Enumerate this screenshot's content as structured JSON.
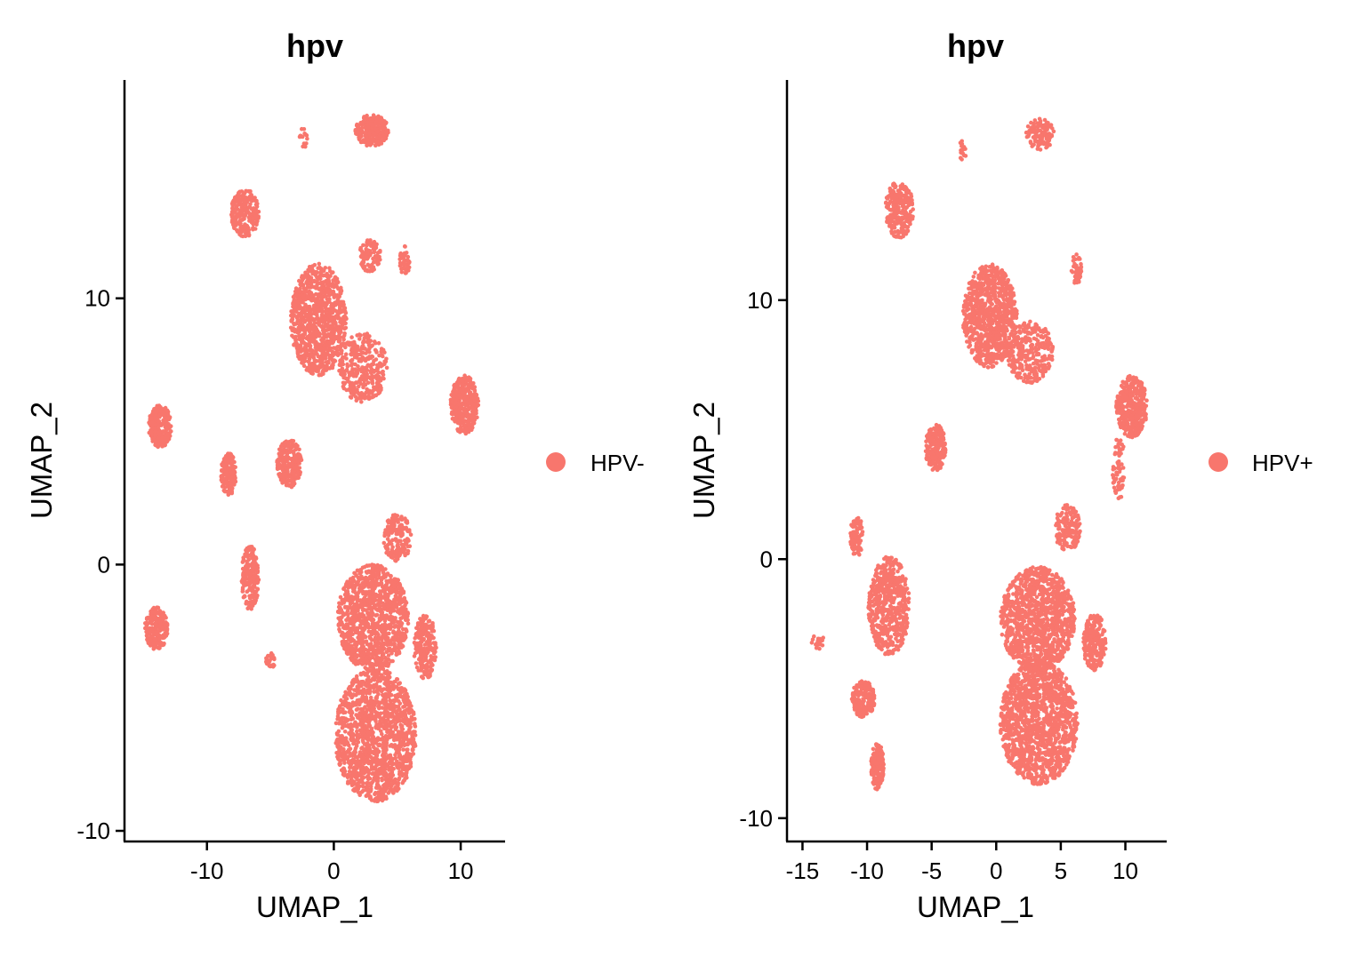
{
  "chart_data": [
    {
      "type": "scatter",
      "title": "hpv",
      "xlabel": "UMAP_1",
      "ylabel": "UMAP_2",
      "xlim": [
        -16.5,
        13.5
      ],
      "ylim": [
        -10.4,
        18.2
      ],
      "xticks": [
        -10,
        0,
        10
      ],
      "yticks": [
        -10,
        0,
        10
      ],
      "xtick_labels": [
        "-10",
        "0",
        "10"
      ],
      "ytick_labels": [
        "-10",
        "0",
        "10"
      ],
      "grid": false,
      "legend_position": "right",
      "series": [
        {
          "name": "HPV-",
          "color": "#F8766D",
          "clusters": [
            {
              "cx": 3.3,
              "cy": -6.4,
              "sx": 3.2,
              "sy": 2.5,
              "n": 1400
            },
            {
              "cx": 3.1,
              "cy": -2.0,
              "sx": 2.8,
              "sy": 2.0,
              "n": 1100
            },
            {
              "cx": 7.2,
              "cy": -3.1,
              "sx": 0.9,
              "sy": 1.2,
              "n": 220
            },
            {
              "cx": 5.0,
              "cy": 1.0,
              "sx": 1.1,
              "sy": 0.9,
              "n": 160
            },
            {
              "cx": -1.2,
              "cy": 9.2,
              "sx": 2.2,
              "sy": 2.1,
              "n": 900
            },
            {
              "cx": 2.3,
              "cy": 7.4,
              "sx": 1.9,
              "sy": 1.3,
              "n": 330
            },
            {
              "cx": 2.8,
              "cy": 11.6,
              "sx": 0.9,
              "sy": 0.6,
              "n": 90
            },
            {
              "cx": 10.3,
              "cy": 6.0,
              "sx": 1.1,
              "sy": 1.1,
              "n": 360
            },
            {
              "cx": 5.6,
              "cy": 11.4,
              "sx": 0.4,
              "sy": 0.6,
              "n": 45
            },
            {
              "cx": 3.0,
              "cy": 16.3,
              "sx": 1.3,
              "sy": 0.6,
              "n": 260
            },
            {
              "cx": -2.4,
              "cy": 16.0,
              "sx": 0.3,
              "sy": 0.4,
              "n": 18
            },
            {
              "cx": -7.0,
              "cy": 13.2,
              "sx": 1.1,
              "sy": 0.9,
              "n": 220
            },
            {
              "cx": -13.7,
              "cy": 5.2,
              "sx": 0.9,
              "sy": 0.8,
              "n": 230
            },
            {
              "cx": -8.3,
              "cy": 3.4,
              "sx": 0.6,
              "sy": 0.8,
              "n": 160
            },
            {
              "cx": -3.5,
              "cy": 3.8,
              "sx": 1.0,
              "sy": 0.9,
              "n": 230
            },
            {
              "cx": -6.6,
              "cy": -0.5,
              "sx": 0.7,
              "sy": 1.2,
              "n": 190
            },
            {
              "cx": -14.0,
              "cy": -2.4,
              "sx": 0.9,
              "sy": 0.8,
              "n": 220
            },
            {
              "cx": -5.0,
              "cy": -3.6,
              "sx": 0.4,
              "sy": 0.3,
              "n": 25
            }
          ]
        }
      ]
    },
    {
      "type": "scatter",
      "title": "hpv",
      "xlabel": "UMAP_1",
      "ylabel": "UMAP_2",
      "xlim": [
        -16.2,
        13.2
      ],
      "ylim": [
        -10.9,
        18.5
      ],
      "xticks": [
        -15,
        -10,
        -5,
        0,
        5,
        10
      ],
      "yticks": [
        -10,
        0,
        10
      ],
      "xtick_labels": [
        "-15",
        "-10",
        "-5",
        "0",
        "5",
        "10"
      ],
      "ytick_labels": [
        "-10",
        "0",
        "10"
      ],
      "grid": false,
      "legend_position": "right",
      "series": [
        {
          "name": "HPV+",
          "color": "#F8766D",
          "clusters": [
            {
              "cx": 3.3,
              "cy": -6.3,
              "sx": 3.0,
              "sy": 2.4,
              "n": 1400
            },
            {
              "cx": 3.2,
              "cy": -2.3,
              "sx": 2.9,
              "sy": 2.0,
              "n": 1100
            },
            {
              "cx": 7.6,
              "cy": -3.2,
              "sx": 0.9,
              "sy": 1.1,
              "n": 220
            },
            {
              "cx": 5.5,
              "cy": 1.2,
              "sx": 1.0,
              "sy": 0.9,
              "n": 150
            },
            {
              "cx": -0.5,
              "cy": 9.4,
              "sx": 2.1,
              "sy": 2.0,
              "n": 850
            },
            {
              "cx": 2.6,
              "cy": 8.0,
              "sx": 1.8,
              "sy": 1.2,
              "n": 300
            },
            {
              "cx": 6.2,
              "cy": 11.2,
              "sx": 0.4,
              "sy": 0.6,
              "n": 50
            },
            {
              "cx": 10.5,
              "cy": 5.9,
              "sx": 1.2,
              "sy": 1.2,
              "n": 380
            },
            {
              "cx": 9.5,
              "cy": 3.5,
              "sx": 0.5,
              "sy": 1.2,
              "n": 60
            },
            {
              "cx": 3.4,
              "cy": 16.4,
              "sx": 1.1,
              "sy": 0.6,
              "n": 120
            },
            {
              "cx": -2.6,
              "cy": 15.8,
              "sx": 0.3,
              "sy": 0.4,
              "n": 18
            },
            {
              "cx": -7.5,
              "cy": 13.5,
              "sx": 1.1,
              "sy": 1.1,
              "n": 240
            },
            {
              "cx": -4.7,
              "cy": 4.3,
              "sx": 0.8,
              "sy": 0.9,
              "n": 200
            },
            {
              "cx": -8.3,
              "cy": -1.8,
              "sx": 1.6,
              "sy": 1.9,
              "n": 550
            },
            {
              "cx": -10.3,
              "cy": -5.4,
              "sx": 0.9,
              "sy": 0.7,
              "n": 200
            },
            {
              "cx": -9.2,
              "cy": -8.0,
              "sx": 0.5,
              "sy": 0.9,
              "n": 180
            },
            {
              "cx": -10.8,
              "cy": 0.9,
              "sx": 0.5,
              "sy": 0.8,
              "n": 100
            },
            {
              "cx": -13.8,
              "cy": -3.2,
              "sx": 0.5,
              "sy": 0.3,
              "n": 20
            }
          ]
        }
      ]
    }
  ]
}
